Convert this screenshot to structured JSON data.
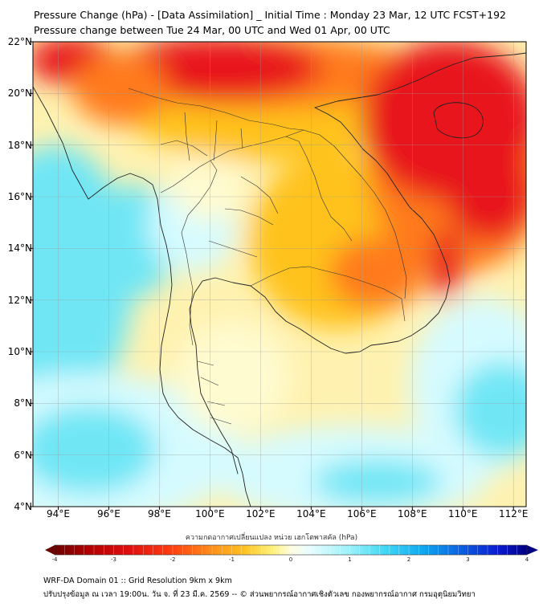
{
  "header": {
    "title_line1": "Pressure Change (hPa) - [Data Assimilation] _ Initial Time : Monday 23 Mar, 12 UTC FCST+192",
    "title_line2": "Pressure change between Tue 24 Mar, 00 UTC and Wed 01 Apr, 00 UTC"
  },
  "map": {
    "lat_labels": [
      "22°N",
      "20°N",
      "18°N",
      "16°N",
      "14°N",
      "12°N",
      "10°N",
      "8°N",
      "6°N",
      "4°N"
    ],
    "lon_labels": [
      "94°E",
      "96°E",
      "98°E",
      "100°E",
      "102°E",
      "104°E",
      "106°E",
      "108°E",
      "110°E",
      "112°E"
    ],
    "lat_range": [
      4,
      22
    ],
    "lon_range": [
      93,
      112.5
    ],
    "grid": true,
    "background_color": "#fff2b0",
    "field_colors": {
      "strong_rise": "#e8141a",
      "moderate_rise": "#ff7a1a",
      "weak_rise": "#ffc21f",
      "neutral": "#fffbd0",
      "weak_fall": "#d6fbff",
      "moderate_fall": "#6fe6f5"
    },
    "coastline_color": "#222222",
    "border_color": "#333333"
  },
  "legend": {
    "title": "ความกดอากาศเปลี่ยนแปลง หน่วย เฮกโตพาสคัล (hPa)",
    "ticks": [
      "-4",
      "-3",
      "-2",
      "-1",
      "0",
      "1",
      "2",
      "3",
      "4"
    ],
    "range": [
      -4,
      4
    ],
    "colors": [
      "#6b0000",
      "#b00000",
      "#e01010",
      "#ff4010",
      "#ff8c1a",
      "#ffc21f",
      "#fff07a",
      "#fffde0",
      "#e8fdff",
      "#a0f2fb",
      "#40d8f5",
      "#10a8f0",
      "#0a60e0",
      "#0a1ad0",
      "#000080"
    ]
  },
  "footer": {
    "line1": "WRF-DA Domain 01 :: Grid Resolution 9km x 9km",
    "line2": "ปรับปรุงข้อมูล ณ เวลา 19:00น. วัน จ. ที่ 23 มี.ค. 2569 -- © ส่วนพยากรณ์อากาศเชิงตัวเลข กองพยากรณ์อากาศ กรมอุตุนิยมวิทยา"
  }
}
